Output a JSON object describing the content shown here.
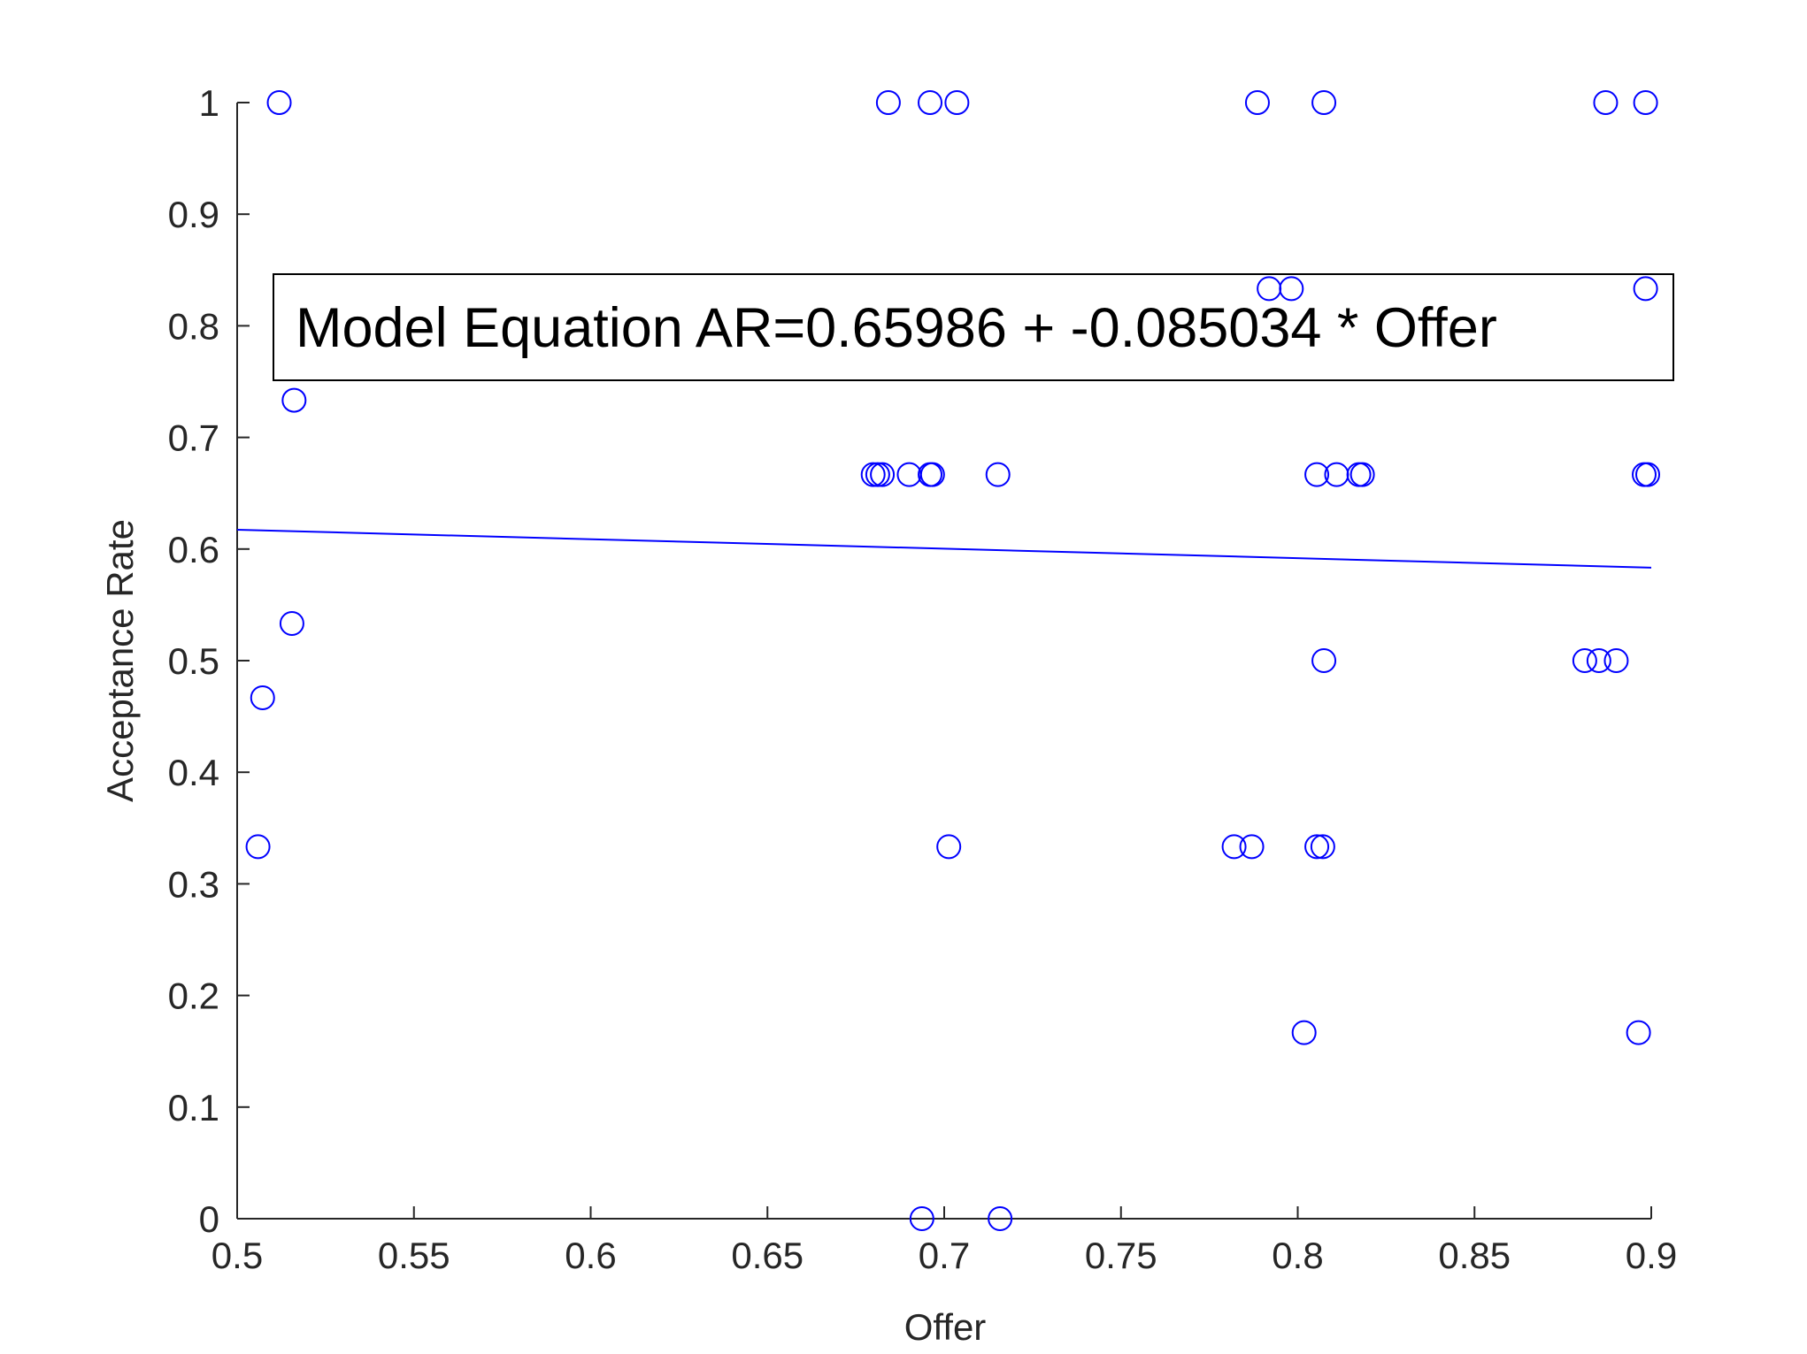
{
  "chart_data": {
    "type": "scatter",
    "xlabel": "Offer",
    "ylabel": "Acceptance Rate",
    "annotation": "Model Equation AR=0.65986 + -0.085034 * Offer",
    "xlim": [
      0.5,
      0.9
    ],
    "xticks": [
      0.5,
      0.55,
      0.6,
      0.65,
      0.7,
      0.75,
      0.8,
      0.85,
      0.9
    ],
    "ylim": [
      0,
      1
    ],
    "yticks": [
      0,
      0.1,
      0.2,
      0.3,
      0.4,
      0.5,
      0.6,
      0.7,
      0.8,
      0.9,
      1
    ],
    "grid": false,
    "series": [
      {
        "style": "markers",
        "color": "#0000ff",
        "x": [
          0.5119,
          0.6842,
          0.696,
          0.7036,
          0.7886,
          0.8074,
          0.8871,
          0.8984,
          0.7919,
          0.7982,
          0.8984,
          0.5161,
          0.6799,
          0.6812,
          0.6825,
          0.6901,
          0.696,
          0.6967,
          0.7152,
          0.8054,
          0.811,
          0.8173,
          0.8183,
          0.898,
          0.899,
          0.5155,
          0.5072,
          0.8074,
          0.8812,
          0.8852,
          0.8901,
          0.5059,
          0.7013,
          0.782,
          0.787,
          0.8054,
          0.8071,
          0.8018,
          0.8964,
          0.6937,
          0.7158
        ],
        "values": [
          1,
          1,
          1,
          1,
          1,
          1,
          1,
          1,
          0.8333,
          0.8333,
          0.8333,
          0.7333,
          0.6667,
          0.6667,
          0.6667,
          0.6667,
          0.6667,
          0.6667,
          0.6667,
          0.6667,
          0.6667,
          0.6667,
          0.6667,
          0.6667,
          0.6667,
          0.5333,
          0.4667,
          0.5,
          0.5,
          0.5,
          0.5,
          0.3333,
          0.3333,
          0.3333,
          0.3333,
          0.3333,
          0.3333,
          0.1667,
          0.1667,
          0,
          0
        ]
      },
      {
        "style": "line",
        "color": "#0000ff",
        "x": [
          0.5,
          0.9
        ],
        "values": [
          0.6173,
          0.5833
        ]
      }
    ]
  }
}
